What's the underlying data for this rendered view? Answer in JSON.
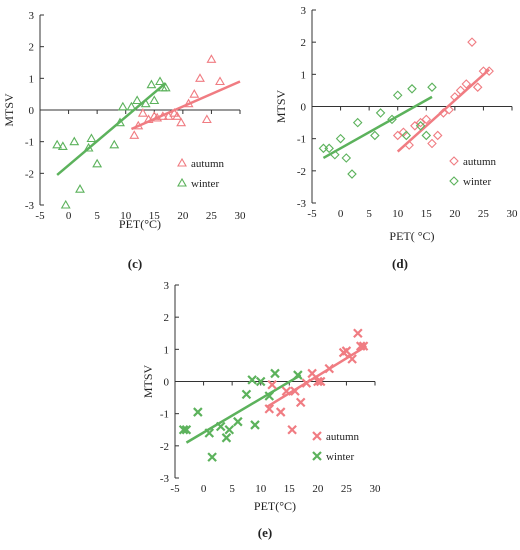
{
  "colors": {
    "autumn": "#f07c82",
    "winter": "#5cb25c",
    "axis": "#333333"
  },
  "chart_data": [
    {
      "panel_label": "(c)",
      "type": "scatter",
      "xlabel": "PET(°C)",
      "ylabel": "MTSV",
      "xlim": [
        -5,
        30
      ],
      "ylim": [
        -3,
        3
      ],
      "xticks": [
        -5,
        0,
        5,
        10,
        15,
        20,
        25,
        30
      ],
      "yticks": [
        -3,
        -2,
        -1,
        0,
        1,
        2,
        3
      ],
      "grid": false,
      "legend": "bottom-right",
      "series": [
        {
          "name": "autumn",
          "color": "autumn",
          "marker": "triangle",
          "points": [
            [
              11.5,
              -0.8
            ],
            [
              12.2,
              -0.5
            ],
            [
              13,
              -0.1
            ],
            [
              14,
              -0.3
            ],
            [
              15,
              -0.2
            ],
            [
              15.5,
              -0.25
            ],
            [
              16.5,
              -0.2
            ],
            [
              17.5,
              -0.2
            ],
            [
              18.5,
              -0.1
            ],
            [
              19,
              -0.2
            ],
            [
              19.7,
              -0.4
            ],
            [
              21,
              0.2
            ],
            [
              22,
              0.5
            ],
            [
              23,
              1.0
            ],
            [
              24.2,
              -0.3
            ],
            [
              25,
              1.6
            ],
            [
              26.5,
              0.9
            ]
          ],
          "trend": [
            [
              11,
              -0.6
            ],
            [
              30,
              0.9
            ]
          ]
        },
        {
          "name": "winter",
          "color": "winter",
          "marker": "triangle",
          "points": [
            [
              -2,
              -1.1
            ],
            [
              -1,
              -1.15
            ],
            [
              -0.5,
              -3
            ],
            [
              1,
              -1.0
            ],
            [
              2,
              -2.5
            ],
            [
              3.5,
              -1.2
            ],
            [
              4,
              -0.9
            ],
            [
              5,
              -1.7
            ],
            [
              8,
              -1.1
            ],
            [
              9,
              -0.4
            ],
            [
              9.5,
              0.1
            ],
            [
              11,
              0.1
            ],
            [
              12,
              0.3
            ],
            [
              13.5,
              0.2
            ],
            [
              14.5,
              0.8
            ],
            [
              15,
              0.3
            ],
            [
              16,
              0.9
            ],
            [
              16.5,
              0.7
            ],
            [
              17,
              0.7
            ]
          ],
          "trend": [
            [
              -2,
              -2.05
            ],
            [
              17,
              0.85
            ]
          ]
        }
      ]
    },
    {
      "panel_label": "(d)",
      "type": "scatter",
      "xlabel": "PET( °C)",
      "ylabel": "MTSV",
      "xlim": [
        -5,
        30
      ],
      "ylim": [
        -3,
        3
      ],
      "xticks": [
        -5,
        0,
        5,
        10,
        15,
        20,
        25,
        30
      ],
      "yticks": [
        -3,
        -2,
        -1,
        0,
        1,
        2,
        3
      ],
      "grid": false,
      "legend": "bottom-right",
      "series": [
        {
          "name": "autumn",
          "color": "autumn",
          "marker": "diamond",
          "points": [
            [
              10,
              -0.9
            ],
            [
              11,
              -0.8
            ],
            [
              12,
              -1.2
            ],
            [
              13,
              -0.6
            ],
            [
              14,
              -0.5
            ],
            [
              15,
              -0.4
            ],
            [
              16,
              -1.15
            ],
            [
              17,
              -0.9
            ],
            [
              18,
              -0.2
            ],
            [
              19,
              -0.1
            ],
            [
              20,
              0.3
            ],
            [
              21,
              0.5
            ],
            [
              22,
              0.7
            ],
            [
              23,
              2.0
            ],
            [
              24,
              0.6
            ],
            [
              25,
              1.1
            ],
            [
              26,
              1.1
            ]
          ],
          "trend": [
            [
              10,
              -1.4
            ],
            [
              26,
              1.15
            ]
          ]
        },
        {
          "name": "winter",
          "color": "winter",
          "marker": "diamond",
          "points": [
            [
              -3,
              -1.3
            ],
            [
              -2,
              -1.3
            ],
            [
              -1,
              -1.5
            ],
            [
              0,
              -1.0
            ],
            [
              1,
              -1.6
            ],
            [
              2,
              -2.1
            ],
            [
              3,
              -0.5
            ],
            [
              6,
              -0.9
            ],
            [
              7,
              -0.2
            ],
            [
              9,
              -0.4
            ],
            [
              10,
              0.35
            ],
            [
              11.5,
              -0.9
            ],
            [
              12.5,
              0.55
            ],
            [
              14,
              -0.6
            ],
            [
              15,
              -0.9
            ],
            [
              16,
              0.6
            ]
          ],
          "trend": [
            [
              -3,
              -1.6
            ],
            [
              16,
              0.3
            ]
          ]
        }
      ]
    },
    {
      "panel_label": "(e)",
      "type": "scatter",
      "xlabel": "PET(°C)",
      "ylabel": "MTSV",
      "xlim": [
        -5,
        30
      ],
      "ylim": [
        -3,
        3
      ],
      "xticks": [
        -5,
        0,
        5,
        10,
        15,
        20,
        25,
        30
      ],
      "yticks": [
        -3,
        -2,
        -1,
        0,
        1,
        2,
        3
      ],
      "grid": false,
      "legend": "bottom-right",
      "series": [
        {
          "name": "autumn",
          "color": "autumn",
          "marker": "x",
          "points": [
            [
              11.5,
              -0.85
            ],
            [
              12,
              -0.1
            ],
            [
              13.5,
              -0.95
            ],
            [
              14.5,
              -0.3
            ],
            [
              15.5,
              -1.5
            ],
            [
              16,
              -0.3
            ],
            [
              17,
              -0.65
            ],
            [
              18,
              -0.05
            ],
            [
              19,
              0.25
            ],
            [
              20,
              0.0
            ],
            [
              20.5,
              0.0
            ],
            [
              22,
              0.4
            ],
            [
              24.5,
              0.9
            ],
            [
              25,
              0.95
            ],
            [
              26,
              0.7
            ],
            [
              27,
              1.5
            ],
            [
              27.5,
              1.1
            ],
            [
              28,
              1.1
            ]
          ],
          "trend": [
            [
              11,
              -0.8
            ],
            [
              28.5,
              1.1
            ]
          ]
        },
        {
          "name": "winter",
          "color": "winter",
          "marker": "x",
          "points": [
            [
              -3.5,
              -1.5
            ],
            [
              -3,
              -1.5
            ],
            [
              -1,
              -0.95
            ],
            [
              1,
              -1.6
            ],
            [
              1.5,
              -2.35
            ],
            [
              3,
              -1.4
            ],
            [
              4,
              -1.75
            ],
            [
              4.5,
              -1.5
            ],
            [
              6,
              -1.25
            ],
            [
              7.5,
              -0.4
            ],
            [
              8.5,
              0.05
            ],
            [
              9,
              -1.35
            ],
            [
              10,
              0.0
            ],
            [
              11.5,
              -0.45
            ],
            [
              12.5,
              0.25
            ],
            [
              16.5,
              0.2
            ]
          ],
          "trend": [
            [
              -3,
              -1.9
            ],
            [
              17,
              0.2
            ]
          ]
        }
      ]
    }
  ]
}
